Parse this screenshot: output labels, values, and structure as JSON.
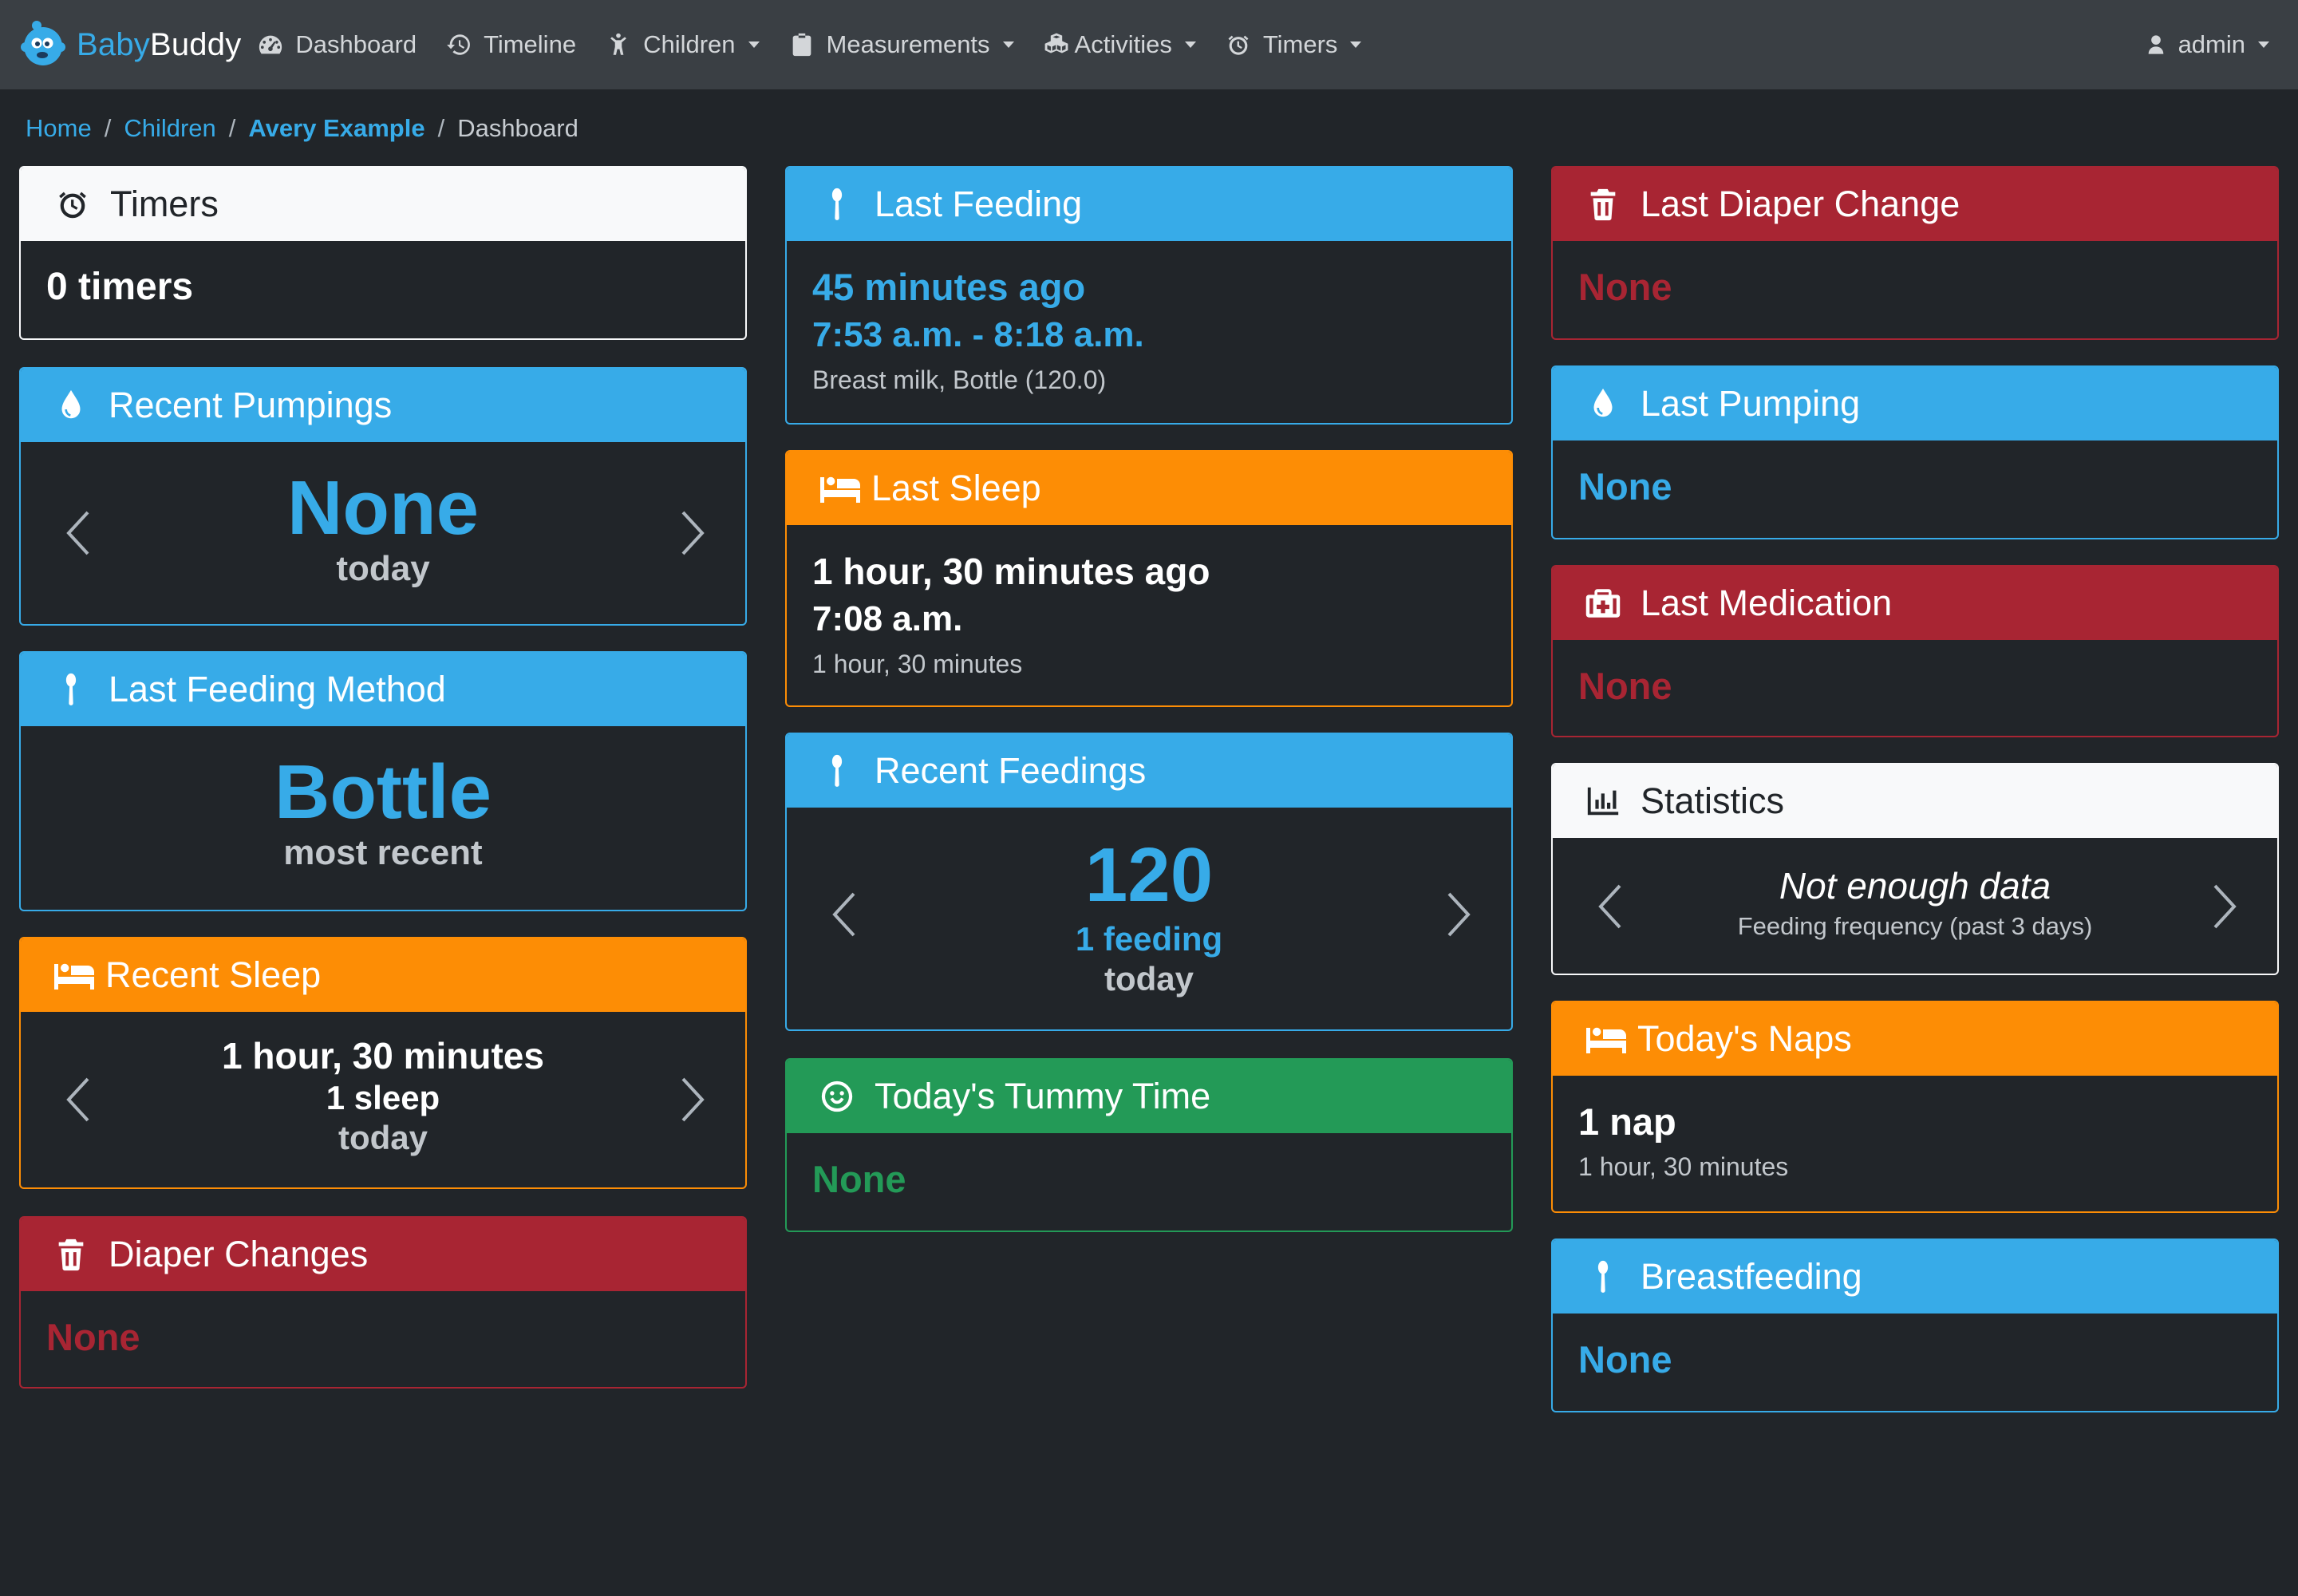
{
  "brand": {
    "part1": "Baby",
    "part2": "Buddy"
  },
  "nav": {
    "dashboard": "Dashboard",
    "timeline": "Timeline",
    "children": "Children",
    "measurements": "Measurements",
    "activities": "Activities",
    "timers": "Timers",
    "user": "admin"
  },
  "breadcrumb": {
    "home": "Home",
    "children": "Children",
    "child": "Avery Example",
    "current": "Dashboard"
  },
  "cards": {
    "timers": {
      "title": "Timers",
      "value": "0 timers"
    },
    "recent_pumpings": {
      "title": "Recent Pumpings",
      "value": "None",
      "period": "today"
    },
    "last_feeding_method": {
      "title": "Last Feeding Method",
      "value": "Bottle",
      "note": "most recent"
    },
    "recent_sleep": {
      "title": "Recent Sleep",
      "value": "1 hour, 30 minutes",
      "count": "1 sleep",
      "period": "today"
    },
    "diaper_changes": {
      "title": "Diaper Changes",
      "value": "None"
    },
    "last_feeding": {
      "title": "Last Feeding",
      "ago": "45 minutes ago",
      "range": "7:53 a.m. - 8:18 a.m.",
      "detail": "Breast milk, Bottle (120.0)"
    },
    "last_sleep": {
      "title": "Last Sleep",
      "ago": "1 hour, 30 minutes ago",
      "time": "7:08 a.m.",
      "duration": "1 hour, 30 minutes"
    },
    "recent_feedings": {
      "title": "Recent Feedings",
      "value": "120",
      "count": "1 feeding",
      "period": "today"
    },
    "tummy_time": {
      "title": "Today's Tummy Time",
      "value": "None"
    },
    "last_diaper_change": {
      "title": "Last Diaper Change",
      "value": "None"
    },
    "last_pumping": {
      "title": "Last Pumping",
      "value": "None"
    },
    "last_medication": {
      "title": "Last Medication",
      "value": "None"
    },
    "statistics": {
      "title": "Statistics",
      "value": "Not enough data",
      "subtitle": "Feeding frequency (past 3 days)"
    },
    "todays_naps": {
      "title": "Today's Naps",
      "value": "1 nap",
      "duration": "1 hour, 30 minutes"
    },
    "breastfeeding": {
      "title": "Breastfeeding",
      "value": "None"
    }
  },
  "icons": {
    "timer": "stopwatch-icon",
    "pumping": "droplet-icon",
    "feeding": "spoon-icon",
    "sleep": "bed-icon",
    "diaper": "trash-icon",
    "medication": "medkit-icon",
    "statistics": "bar-chart-icon",
    "tummy": "smile-icon"
  },
  "colors": {
    "primary": "#37abe8",
    "danger": "#a82533",
    "warning": "#fd8d05",
    "success": "#239a57",
    "light": "#f8f9fa",
    "navbar": "#3a3f44",
    "background": "#212529"
  }
}
